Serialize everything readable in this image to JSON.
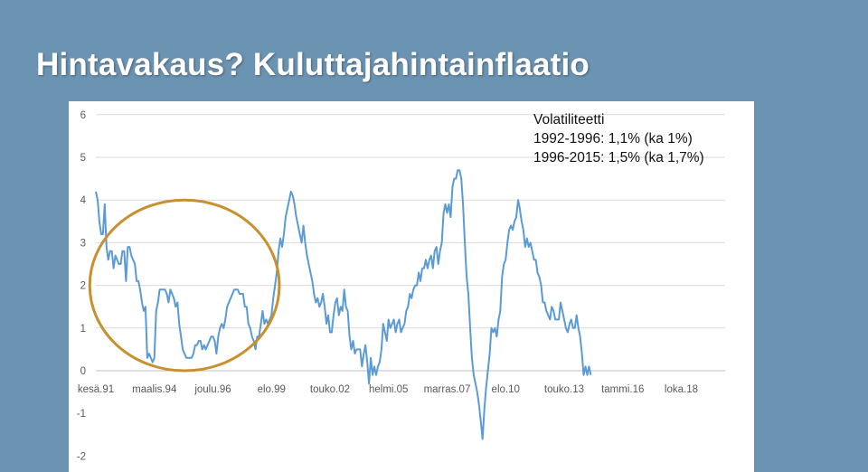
{
  "slide": {
    "title": "Hintavakaus? Kuluttajahintainflaatio"
  },
  "annotation": {
    "heading": "Volatiliteetti",
    "line1": "1992-1996: 1,1% (ka 1%)",
    "line2": "1996-2015: 1,5% (ka 1,7%)"
  },
  "colors": {
    "background": "#6b93b2",
    "line": "#5b9bd5",
    "circle": "#c8902f",
    "grid": "#d9d9d9"
  },
  "chart_data": {
    "type": "line",
    "title": "",
    "xlabel": "",
    "ylabel": "",
    "ylim": [
      -2,
      6
    ],
    "yticks": [
      "-2",
      "-1",
      "0",
      "1",
      "2",
      "3",
      "4",
      "5",
      "6"
    ],
    "xticks": [
      "kesä.91",
      "maalis.94",
      "joulu.96",
      "elo.99",
      "touko.02",
      "helmi.05",
      "marras.07",
      "elo.10",
      "touko.13",
      "tammi.16",
      "loka.18"
    ],
    "grid": true,
    "x_unit": "month index from kesä.91",
    "highlight_circle": {
      "x_center": 50,
      "y_center": 2.0,
      "x_radius": 39,
      "y_radius": 2.0
    },
    "series": [
      {
        "values": [
          4.2,
          4.0,
          3.5,
          3.2,
          3.2,
          3.9,
          2.9,
          2.6,
          2.8,
          2.8,
          2.4,
          2.7,
          2.6,
          2.5,
          2.5,
          2.8,
          2.8,
          2.1,
          2.9,
          2.9,
          2.7,
          2.6,
          2.5,
          2.1,
          2.1,
          1.9,
          1.6,
          1.4,
          1.5,
          0.3,
          0.4,
          0.3,
          0.2,
          0.3,
          1.4,
          1.6,
          1.9,
          1.9,
          1.9,
          1.9,
          1.8,
          1.6,
          1.9,
          1.8,
          1.7,
          1.5,
          1.6,
          1.1,
          0.8,
          0.5,
          0.4,
          0.3,
          0.3,
          0.3,
          0.3,
          0.4,
          0.6,
          0.6,
          0.7,
          0.7,
          0.5,
          0.6,
          0.5,
          0.6,
          0.7,
          0.8,
          0.8,
          0.7,
          0.4,
          0.8,
          1.0,
          1.1,
          1.0,
          1.2,
          1.5,
          1.6,
          1.7,
          1.8,
          1.9,
          1.9,
          1.9,
          1.8,
          1.8,
          1.8,
          1.5,
          1.5,
          1.1,
          1.0,
          0.8,
          0.7,
          0.5,
          0.8,
          0.8,
          1.1,
          1.4,
          1.1,
          1.2,
          1.1,
          1.2,
          1.3,
          1.7,
          2.0,
          2.3,
          2.8,
          3.1,
          2.9,
          3.2,
          3.6,
          3.8,
          4.0,
          4.2,
          4.1,
          3.9,
          3.6,
          3.4,
          3.2,
          3.0,
          3.4,
          3.0,
          2.7,
          2.5,
          2.3,
          2.1,
          1.8,
          1.6,
          1.7,
          1.5,
          1.6,
          1.8,
          1.5,
          1.1,
          1.3,
          0.9,
          0.9,
          1.3,
          1.6,
          1.7,
          1.3,
          1.5,
          1.4,
          1.9,
          1.5,
          1.4,
          0.8,
          0.5,
          0.7,
          0.4,
          0.5,
          0.5,
          0.5,
          0.1,
          0.4,
          0.6,
          0.2,
          -0.3,
          0.3,
          -0.1,
          0.1,
          -0.1,
          0.1,
          0.2,
          0.5,
          1.1,
          0.9,
          0.7,
          1.2,
          1.0,
          1.1,
          1.2,
          0.9,
          1.1,
          1.2,
          0.9,
          1.0,
          1.1,
          1.4,
          1.5,
          1.8,
          1.7,
          1.9,
          2.0,
          2.0,
          2.3,
          2.1,
          2.4,
          2.4,
          2.6,
          2.4,
          2.6,
          2.7,
          2.4,
          2.8,
          2.9,
          2.5,
          2.8,
          3.0,
          3.7,
          3.9,
          3.7,
          3.9,
          3.6,
          4.3,
          4.5,
          4.5,
          4.7,
          4.7,
          4.5,
          3.9,
          3.0,
          2.2,
          1.8,
          1.0,
          0.3,
          -0.1,
          -0.3,
          -0.5,
          -0.8,
          -1.2,
          -1.6,
          -0.9,
          -0.4,
          0.0,
          0.4,
          1.0,
          0.9,
          1.0,
          0.8,
          1.2,
          1.4,
          2.2,
          2.5,
          2.6,
          3.0,
          3.3,
          3.4,
          3.3,
          3.5,
          3.6,
          4.0,
          3.8,
          3.5,
          3.3,
          2.9,
          3.1,
          2.9,
          3.0,
          2.8,
          2.6,
          2.6,
          2.3,
          2.2,
          2.0,
          1.6,
          1.6,
          1.4,
          1.3,
          1.2,
          1.5,
          1.4,
          1.2,
          1.2,
          1.2,
          1.6,
          1.4,
          1.2,
          1.0,
          0.9,
          1.1,
          1.2,
          1.0,
          1.0,
          1.3,
          1.0,
          0.8,
          0.4,
          -0.1,
          0.1,
          -0.1,
          0.1,
          -0.1
        ]
      }
    ]
  }
}
